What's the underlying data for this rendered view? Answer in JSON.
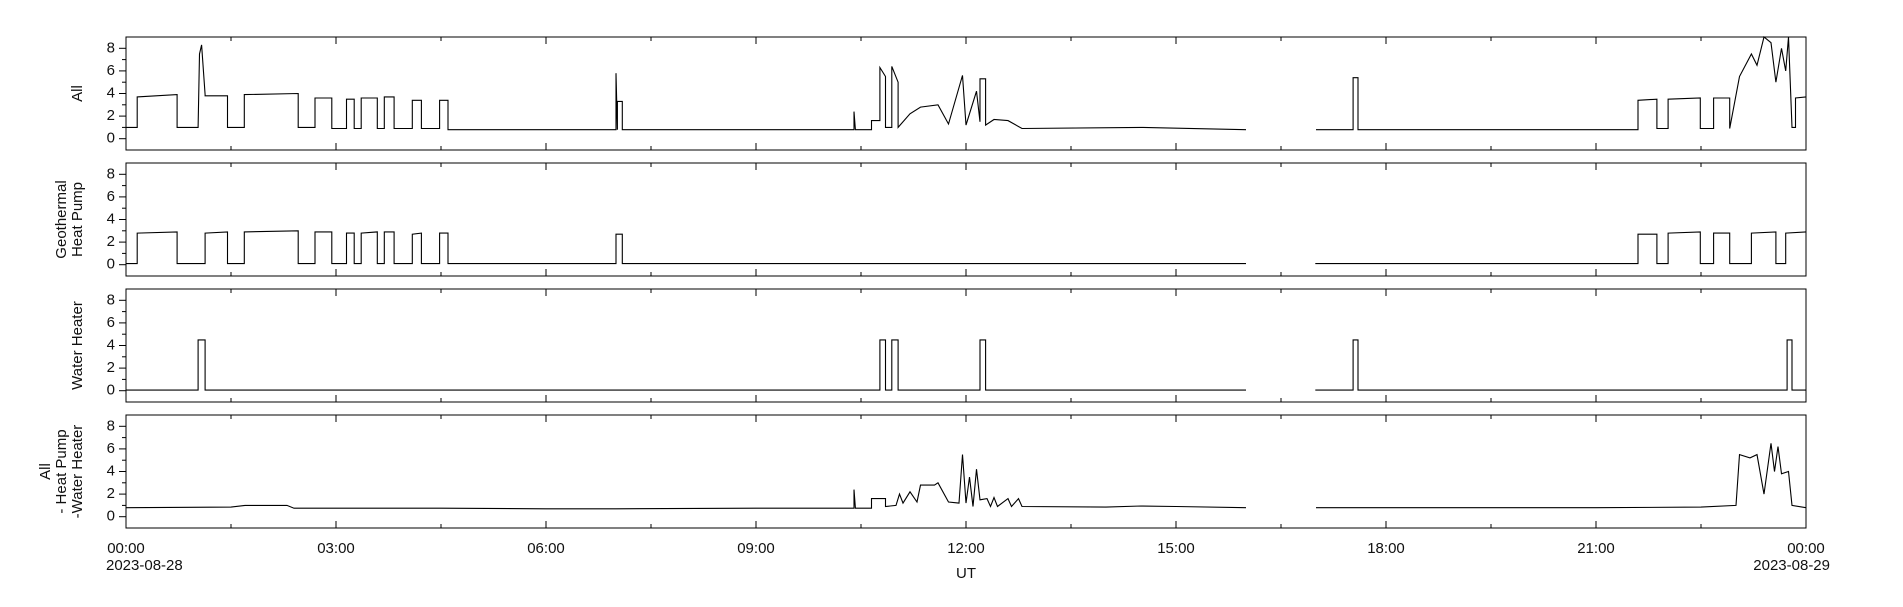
{
  "chart_data": {
    "type": "line",
    "xlabel": "UT",
    "xlim": [
      0,
      24
    ],
    "xticks": [
      {
        "value": 0,
        "label": "00:00",
        "date": "2023-08-28"
      },
      {
        "value": 3,
        "label": "03:00"
      },
      {
        "value": 6,
        "label": "06:00"
      },
      {
        "value": 9,
        "label": "09:00"
      },
      {
        "value": 12,
        "label": "12:00"
      },
      {
        "value": 15,
        "label": "15:00"
      },
      {
        "value": 18,
        "label": "18:00"
      },
      {
        "value": 21,
        "label": "21:00"
      },
      {
        "value": 24,
        "label": "00:00",
        "date": "2023-08-29"
      }
    ],
    "xminorticks": [
      1.5,
      4.5,
      7.5,
      10.5,
      13.5,
      16.5,
      19.5,
      22.5
    ],
    "ylim": [
      -1,
      9
    ],
    "yticks": [
      0,
      2,
      4,
      6,
      8
    ],
    "yminorticks": [
      1,
      3,
      5,
      7
    ],
    "series": [
      {
        "name": [
          "All"
        ],
        "color": "#000000",
        "x": [
          0,
          0.16,
          0.16,
          0.73,
          0.73,
          1.03,
          1.05,
          1.08,
          1.13,
          1.13,
          1.45,
          1.45,
          1.69,
          1.69,
          2.46,
          2.46,
          2.7,
          2.7,
          2.94,
          2.94,
          3.15,
          3.15,
          3.26,
          3.26,
          3.36,
          3.36,
          3.59,
          3.59,
          3.69,
          3.69,
          3.83,
          3.83,
          4.09,
          4.09,
          4.22,
          4.22,
          4.48,
          4.48,
          4.6,
          4.6,
          7.0,
          7.0,
          7.02,
          7.02,
          7.09,
          7.09,
          10.4,
          10.4,
          10.42,
          10.65,
          10.65,
          10.77,
          10.77,
          10.85,
          10.85,
          10.94,
          10.94,
          11.03,
          11.03,
          11.2,
          11.35,
          11.6,
          11.75,
          11.95,
          12.0,
          12.15,
          12.2,
          12.2,
          12.28,
          12.28,
          12.4,
          12.6,
          12.8,
          14.5,
          16.0,
          16.5,
          17.0,
          17.53,
          17.53,
          17.6,
          17.6,
          21.6,
          21.6,
          21.87,
          21.87,
          22.03,
          22.03,
          22.49,
          22.49,
          22.68,
          22.68,
          22.91,
          22.91,
          23.05,
          23.22,
          23.3,
          23.4,
          23.5,
          23.57,
          23.65,
          23.71,
          23.75,
          23.8,
          23.85,
          23.85,
          24
        ],
        "values": [
          1.0,
          1.0,
          3.7,
          3.9,
          1.0,
          1.0,
          7.5,
          8.3,
          3.9,
          3.8,
          3.8,
          1.0,
          1.0,
          3.9,
          4.0,
          1.0,
          1.0,
          3.6,
          3.6,
          0.9,
          0.9,
          3.5,
          3.5,
          0.9,
          0.9,
          3.6,
          3.6,
          0.9,
          0.9,
          3.7,
          3.7,
          0.9,
          0.9,
          3.4,
          3.4,
          0.9,
          0.9,
          3.4,
          3.4,
          0.8,
          0.8,
          5.8,
          0.8,
          3.3,
          3.3,
          0.8,
          0.8,
          2.4,
          0.8,
          0.8,
          1.6,
          1.6,
          6.3,
          5.5,
          1.0,
          1.0,
          6.4,
          5.0,
          1.0,
          2.2,
          2.8,
          3.0,
          1.3,
          5.6,
          1.2,
          4.2,
          1.5,
          5.3,
          5.3,
          1.2,
          1.7,
          1.6,
          0.9,
          1.0,
          0.8,
          null,
          0.8,
          0.8,
          5.4,
          5.4,
          0.8,
          0.8,
          3.4,
          3.5,
          0.9,
          0.9,
          3.5,
          3.6,
          0.9,
          0.9,
          3.6,
          3.6,
          0.9,
          5.5,
          7.5,
          6.5,
          9.0,
          8.5,
          5.0,
          8.0,
          6.0,
          9.0,
          1.0,
          1.0,
          3.6,
          3.7
        ]
      },
      {
        "name": [
          "Geothermal",
          "Heat Pump"
        ],
        "color": "#000000",
        "x": [
          0,
          0.16,
          0.16,
          0.73,
          0.73,
          1.13,
          1.13,
          1.45,
          1.45,
          1.69,
          1.69,
          2.46,
          2.46,
          2.7,
          2.7,
          2.94,
          2.94,
          3.15,
          3.15,
          3.26,
          3.26,
          3.36,
          3.36,
          3.59,
          3.59,
          3.69,
          3.69,
          3.83,
          3.83,
          4.09,
          4.09,
          4.22,
          4.22,
          4.48,
          4.48,
          4.6,
          4.6,
          7.0,
          7.0,
          7.09,
          7.09,
          16.0,
          16.5,
          16.99,
          21.6,
          21.6,
          21.87,
          21.87,
          22.03,
          22.03,
          22.49,
          22.49,
          22.68,
          22.68,
          22.91,
          22.91,
          23.22,
          23.22,
          23.57,
          23.57,
          23.71,
          23.71,
          24
        ],
        "values": [
          0.1,
          0.1,
          2.8,
          2.9,
          0.1,
          0.1,
          2.8,
          2.9,
          0.1,
          0.1,
          2.9,
          3.0,
          0.1,
          0.1,
          2.9,
          2.9,
          0.1,
          0.1,
          2.8,
          2.8,
          0.1,
          0.1,
          2.8,
          2.9,
          0.1,
          0.1,
          2.9,
          2.9,
          0.1,
          0.1,
          2.7,
          2.8,
          0.1,
          0.1,
          2.8,
          2.8,
          0.1,
          0.1,
          2.7,
          2.7,
          0.1,
          0.1,
          null,
          0.1,
          0.1,
          2.7,
          2.7,
          0.1,
          0.1,
          2.8,
          2.9,
          0.1,
          0.1,
          2.8,
          2.8,
          0.1,
          0.1,
          2.8,
          2.9,
          0.1,
          0.1,
          2.8,
          2.9
        ]
      },
      {
        "name": [
          "Water Heater"
        ],
        "color": "#000000",
        "x": [
          0,
          1.03,
          1.03,
          1.13,
          1.13,
          10.77,
          10.77,
          10.85,
          10.85,
          10.94,
          10.94,
          11.03,
          11.03,
          12.2,
          12.2,
          12.28,
          12.28,
          16.0,
          16.5,
          16.99,
          17.53,
          17.53,
          17.6,
          17.6,
          23.73,
          23.73,
          23.8,
          23.8,
          24
        ],
        "values": [
          0.05,
          0.05,
          4.5,
          4.5,
          0.05,
          0.05,
          4.5,
          4.5,
          0.05,
          0.05,
          4.5,
          4.5,
          0.05,
          0.05,
          4.5,
          4.5,
          0.05,
          0.05,
          null,
          0.05,
          0.05,
          4.5,
          4.5,
          0.05,
          0.05,
          4.5,
          4.5,
          0.05,
          0.05
        ]
      },
      {
        "name": [
          "All",
          "- Heat Pump",
          "-Water Heater"
        ],
        "color": "#000000",
        "x": [
          0,
          1.5,
          1.7,
          2.3,
          2.4,
          4.5,
          6.0,
          7.0,
          9.0,
          10.4,
          10.4,
          10.42,
          10.65,
          10.65,
          10.85,
          10.85,
          11.0,
          11.05,
          11.1,
          11.2,
          11.3,
          11.35,
          11.55,
          11.6,
          11.75,
          11.9,
          11.95,
          12.0,
          12.05,
          12.1,
          12.15,
          12.2,
          12.3,
          12.35,
          12.4,
          12.45,
          12.6,
          12.65,
          12.75,
          12.8,
          14.0,
          14.5,
          15.0,
          16.0,
          16.5,
          17.0,
          21.0,
          22.5,
          23.0,
          23.05,
          23.2,
          23.3,
          23.4,
          23.5,
          23.55,
          23.6,
          23.65,
          23.75,
          23.8,
          24
        ],
        "values": [
          0.8,
          0.85,
          1.0,
          1.0,
          0.75,
          0.75,
          0.7,
          0.7,
          0.75,
          0.75,
          2.4,
          0.75,
          0.75,
          1.6,
          1.6,
          0.9,
          1.0,
          2.0,
          1.2,
          2.2,
          1.3,
          2.8,
          2.8,
          3.0,
          1.3,
          1.2,
          5.5,
          1.2,
          3.5,
          0.9,
          4.2,
          1.5,
          1.6,
          0.9,
          1.7,
          0.9,
          1.6,
          0.9,
          1.6,
          0.9,
          0.85,
          0.95,
          0.9,
          0.8,
          null,
          0.8,
          0.8,
          0.85,
          1.0,
          5.5,
          5.2,
          5.5,
          2.0,
          6.5,
          4.0,
          6.2,
          3.8,
          4.0,
          1.0,
          0.8
        ]
      }
    ]
  }
}
